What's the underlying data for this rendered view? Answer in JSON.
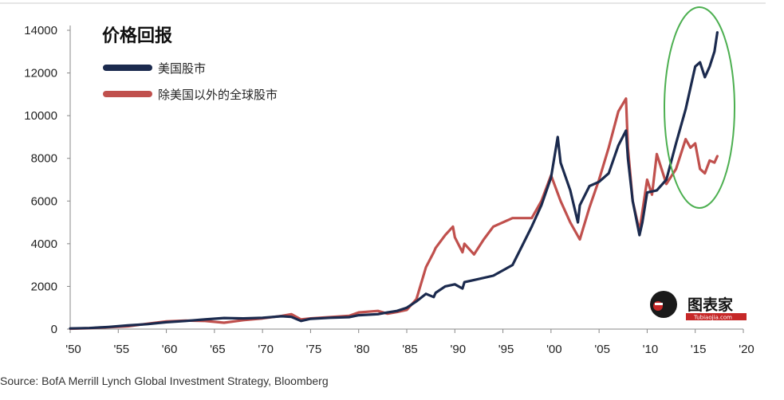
{
  "chart_data": {
    "type": "line",
    "title": "价格回报",
    "xlabel": "",
    "ylabel": "",
    "xlim": [
      1950,
      2020
    ],
    "ylim": [
      0,
      14000
    ],
    "x_tick_labels": [
      "'50",
      "'55",
      "'60",
      "'65",
      "'70",
      "'75",
      "'80",
      "'85",
      "'90",
      "'95",
      "'00",
      "'05",
      "'10",
      "'15",
      "'20"
    ],
    "x_tick_values": [
      1950,
      1955,
      1960,
      1965,
      1970,
      1975,
      1980,
      1985,
      1990,
      1995,
      2000,
      2005,
      2010,
      2015,
      2020
    ],
    "y_tick_labels": [
      "0",
      "2000",
      "4000",
      "6000",
      "8000",
      "10000",
      "12000",
      "14000"
    ],
    "y_tick_values": [
      0,
      2000,
      4000,
      6000,
      8000,
      10000,
      12000,
      14000
    ],
    "legend": {
      "placement": "top-left"
    },
    "series": [
      {
        "name": "美国股市",
        "color": "#1b2a4e",
        "x": [
          1950,
          1952,
          1954,
          1956,
          1958,
          1960,
          1962,
          1964,
          1966,
          1968,
          1970,
          1972,
          1973,
          1974,
          1975,
          1977,
          1979,
          1980,
          1982,
          1983,
          1984,
          1985,
          1986,
          1987,
          1987.8,
          1988,
          1989,
          1990,
          1990.8,
          1991,
          1992,
          1994,
          1996,
          1997,
          1998,
          1999,
          2000,
          2000.7,
          2001,
          2002,
          2002.8,
          2003,
          2004,
          2005,
          2006,
          2007,
          2007.8,
          2008,
          2008.5,
          2009.2,
          2009.5,
          2010,
          2011,
          2012,
          2013,
          2014,
          2015,
          2015.5,
          2016,
          2016.5,
          2017,
          2017.3
        ],
        "y": [
          30,
          50,
          100,
          170,
          230,
          320,
          380,
          450,
          520,
          500,
          530,
          600,
          570,
          380,
          480,
          530,
          560,
          650,
          700,
          780,
          850,
          1000,
          1300,
          1650,
          1500,
          1700,
          2000,
          2100,
          1900,
          2200,
          2300,
          2500,
          3000,
          3900,
          4800,
          5800,
          7100,
          9000,
          7800,
          6500,
          5000,
          5800,
          6700,
          6900,
          7300,
          8600,
          9300,
          8000,
          6000,
          4400,
          5000,
          6400,
          6500,
          7000,
          8700,
          10300,
          12300,
          12500,
          11800,
          12300,
          13000,
          13900
        ]
      },
      {
        "name": "除美国以外的全球股市",
        "color": "#c0504d",
        "x": [
          1950,
          1952,
          1954,
          1956,
          1958,
          1960,
          1962,
          1964,
          1966,
          1968,
          1970,
          1972,
          1973,
          1974,
          1975,
          1977,
          1979,
          1980,
          1982,
          1983,
          1984,
          1985,
          1986,
          1987,
          1987.8,
          1988,
          1989,
          1989.8,
          1990,
          1990.8,
          1991,
          1992,
          1993,
          1994,
          1996,
          1998,
          1999,
          2000,
          2001,
          2002,
          2003,
          2004,
          2005,
          2006,
          2007,
          2007.8,
          2008,
          2008.5,
          2009.2,
          2010,
          2010.5,
          2011,
          2012,
          2013,
          2014,
          2014.5,
          2015,
          2015.5,
          2016,
          2016.5,
          2017,
          2017.3
        ],
        "y": [
          20,
          40,
          90,
          130,
          250,
          360,
          400,
          380,
          300,
          420,
          500,
          620,
          700,
          450,
          500,
          560,
          620,
          780,
          850,
          720,
          800,
          900,
          1400,
          2900,
          3600,
          3800,
          4400,
          4800,
          4300,
          3600,
          4000,
          3500,
          4200,
          4800,
          5200,
          5200,
          6000,
          7200,
          6000,
          5000,
          4200,
          5700,
          7000,
          8500,
          10200,
          10800,
          8500,
          6000,
          4600,
          7000,
          6300,
          8200,
          6800,
          7500,
          8900,
          8500,
          8700,
          7500,
          7300,
          7900,
          7800,
          8100
        ]
      }
    ],
    "annotations": [
      "highlight ellipse around 2013–2017"
    ]
  },
  "source_text": "Source: BofA Merrill Lynch Global Investment Strategy, Bloomberg",
  "watermark": {
    "text": "图表家",
    "subtext": "Tubiaojia.com"
  }
}
